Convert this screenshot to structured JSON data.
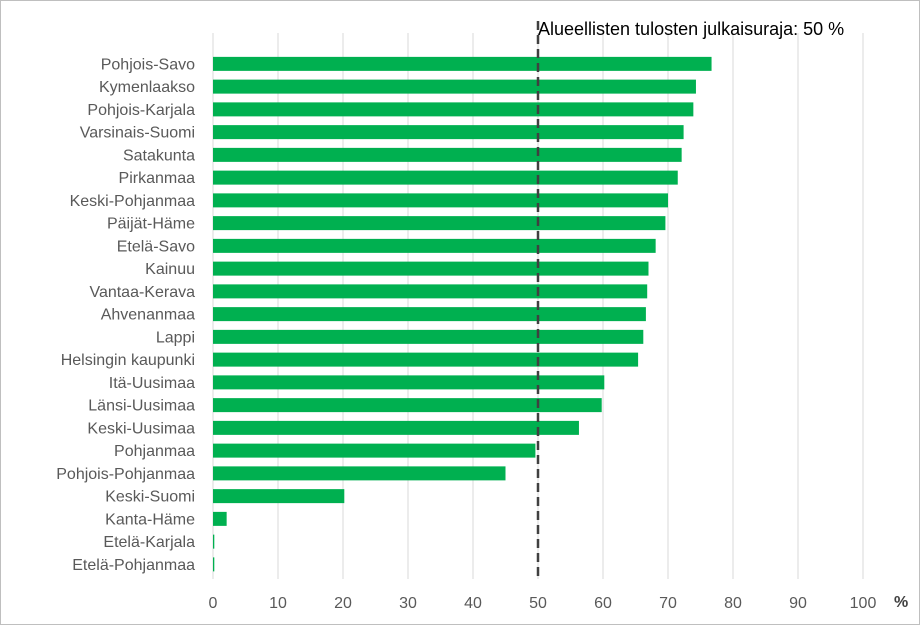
{
  "chart_data": {
    "type": "bar",
    "orientation": "horizontal",
    "categories": [
      "Pohjois-Savo",
      "Kymenlaakso",
      "Pohjois-Karjala",
      "Varsinais-Suomi",
      "Satakunta",
      "Pirkanmaa",
      "Keski-Pohjanmaa",
      "Päijät-Häme",
      "Etelä-Savo",
      "Kainuu",
      "Vantaa-Kerava",
      "Ahvenanmaa",
      "Lappi",
      "Helsingin kaupunki",
      "Itä-Uusimaa",
      "Länsi-Uusimaa",
      "Keski-Uusimaa",
      "Pohjanmaa",
      "Pohjois-Pohjanmaa",
      "Keski-Suomi",
      "Kanta-Häme",
      "Etelä-Karjala",
      "Etelä-Pohjanmaa"
    ],
    "values": [
      76.7,
      74.3,
      73.9,
      72.4,
      72.1,
      71.5,
      70.0,
      69.6,
      68.1,
      67.0,
      66.8,
      66.6,
      66.2,
      65.4,
      60.2,
      59.8,
      56.3,
      49.6,
      45.0,
      20.2,
      2.1,
      0.2,
      0.2
    ],
    "xlim": [
      0,
      100
    ],
    "ticks": [
      "0",
      "10",
      "20",
      "30",
      "40",
      "50",
      "60",
      "70",
      "80",
      "90",
      "100"
    ],
    "unit_label": "%",
    "grid": true,
    "bar_color": "#00b050",
    "reference_line": {
      "value": 50,
      "label": "Alueellisten tulosten julkaisuraja: 50 %",
      "style": "dashed",
      "color": "#404040"
    }
  }
}
